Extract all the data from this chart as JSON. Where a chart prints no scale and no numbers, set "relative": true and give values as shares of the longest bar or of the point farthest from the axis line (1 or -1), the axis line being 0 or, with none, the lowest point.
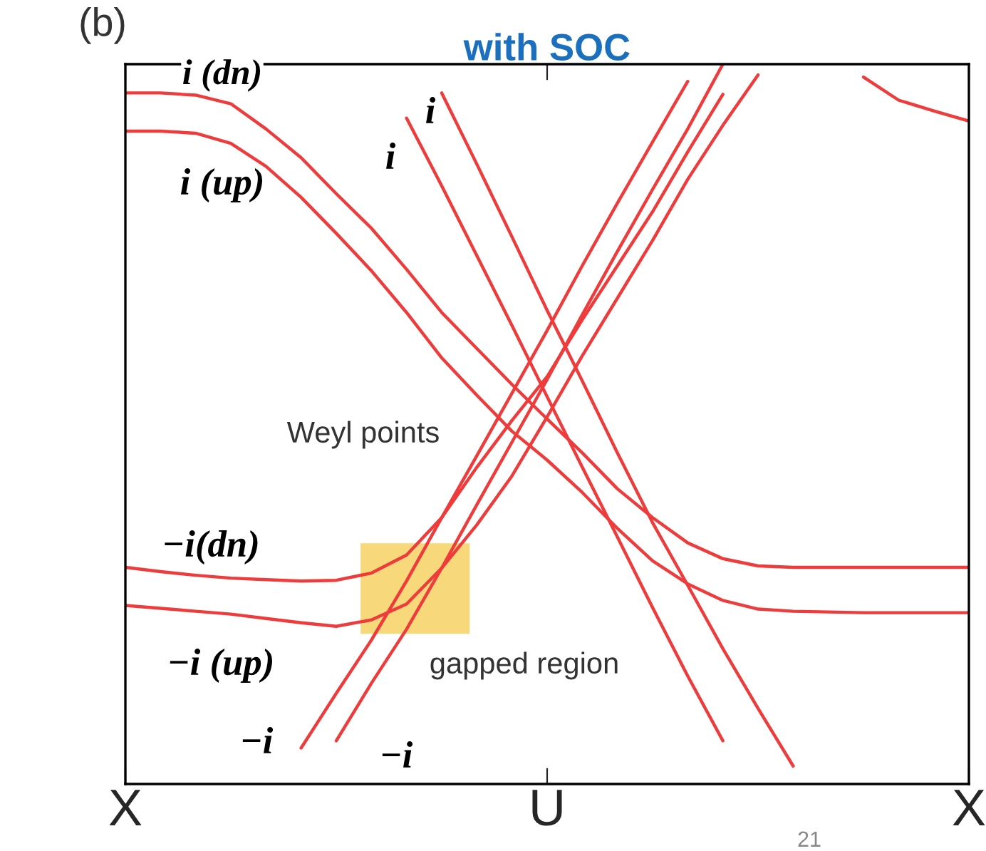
{
  "chart_data": {
    "type": "line",
    "title": "with SOC",
    "relative": true,
    "tick_labels": "x",
    "grid": false,
    "legend": false,
    "marker": "none",
    "line_style": "solid",
    "categories": [
      "X",
      null,
      null,
      null,
      null,
      null,
      null,
      null,
      null,
      null,
      null,
      null,
      "U",
      null,
      null,
      null,
      null,
      null,
      null,
      null,
      null,
      null,
      null,
      null,
      "X"
    ],
    "series": [
      {
        "color": "#ee3b3b",
        "values": [
          0.96,
          0.96,
          0.957,
          0.945,
          0.91,
          0.87,
          0.82,
          0.772,
          0.715,
          0.655,
          0.605,
          0.555,
          0.507,
          0.46,
          0.41,
          0.37,
          0.335,
          0.313,
          0.303,
          0.301,
          0.301,
          0.301,
          0.301,
          0.301,
          0.301
        ]
      },
      {
        "color": "#ee3b3b",
        "values": [
          0.907,
          0.907,
          0.904,
          0.89,
          0.858,
          0.815,
          0.765,
          0.713,
          0.655,
          0.592,
          0.54,
          0.49,
          0.45,
          0.405,
          0.355,
          0.31,
          0.278,
          0.255,
          0.243,
          0.24,
          0.239,
          0.238,
          0.238,
          0.238,
          0.238
        ]
      },
      {
        "color": "#ee3b3b",
        "values": [
          0.301,
          0.295,
          0.29,
          0.286,
          0.284,
          0.282,
          0.283,
          0.293,
          0.318,
          0.37,
          0.44,
          0.505,
          0.566,
          0.645,
          0.72,
          0.795,
          0.878,
          0.958,
          null,
          null,
          null,
          null,
          null,
          null,
          null
        ]
      },
      {
        "color": "#ee3b3b",
        "values": [
          0.248,
          0.244,
          0.24,
          0.236,
          0.23,
          0.224,
          0.219,
          0.228,
          0.25,
          0.3,
          0.36,
          0.428,
          0.51,
          0.595,
          0.675,
          0.755,
          0.84,
          0.915,
          0.985,
          null,
          null,
          null,
          null,
          null,
          null
        ]
      },
      {
        "color": "#ee3b3b",
        "values": [
          null,
          null,
          null,
          null,
          null,
          null,
          null,
          null,
          0.925,
          0.831,
          0.734,
          0.637,
          0.538,
          0.44,
          0.343,
          0.245,
          0.15,
          0.06,
          null,
          null,
          null,
          null,
          null,
          null,
          null
        ]
      },
      {
        "color": "#ee3b3b",
        "values": [
          null,
          null,
          null,
          null,
          null,
          null,
          null,
          null,
          null,
          0.96,
          0.861,
          0.76,
          0.658,
          0.56,
          0.46,
          0.363,
          0.276,
          0.188,
          0.105,
          0.025,
          null,
          null,
          null,
          null,
          null
        ]
      },
      {
        "color": "#ee3b3b",
        "values": [
          null,
          null,
          null,
          null,
          null,
          0.05,
          0.126,
          0.2,
          0.282,
          0.37,
          0.456,
          0.543,
          0.63,
          0.72,
          0.807,
          0.892,
          0.976,
          null,
          null,
          null,
          null,
          null,
          null,
          null,
          null
        ]
      },
      {
        "color": "#ee3b3b",
        "values": [
          null,
          null,
          null,
          null,
          null,
          null,
          0.06,
          0.14,
          0.215,
          0.3,
          0.388,
          0.475,
          0.562,
          0.652,
          0.74,
          0.826,
          0.91,
          1.0,
          null,
          null,
          null,
          null,
          null,
          null,
          null
        ]
      },
      {
        "color": "#ee3b3b",
        "values": [
          null,
          null,
          null,
          null,
          null,
          null,
          null,
          null,
          null,
          null,
          null,
          null,
          null,
          null,
          null,
          null,
          null,
          null,
          null,
          null,
          null,
          0.982,
          0.95,
          0.935,
          0.921
        ]
      }
    ],
    "annotations": [
      "(b)",
      "21",
      "i (dn)",
      "i (up)",
      "i",
      "i",
      "Weyl points",
      "−i(dn)",
      "−i (up)",
      "gapped region",
      "−i",
      "−i"
    ]
  }
}
